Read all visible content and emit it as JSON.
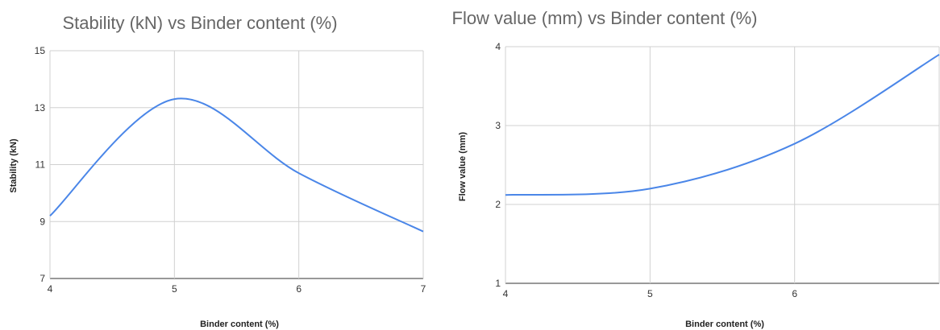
{
  "chart_data": [
    {
      "type": "line",
      "title": "Stability (kN) vs Binder content (%)",
      "xlabel": "Binder content (%)",
      "ylabel": "Stability (kN)",
      "xlim": [
        4,
        7
      ],
      "ylim": [
        7,
        15
      ],
      "xticks": [
        4,
        5,
        6,
        7
      ],
      "yticks": [
        7,
        9,
        11,
        13,
        15
      ],
      "grid": true,
      "smooth": true,
      "color": "#4a86e8",
      "series": [
        {
          "x": [
            4,
            5,
            6,
            7
          ],
          "y": [
            9.2,
            13.3,
            10.7,
            8.65
          ]
        }
      ]
    },
    {
      "type": "line",
      "title": "Flow value (mm) vs Binder content (%)",
      "xlabel": "Binder content (%)",
      "ylabel": "Flow value (mm)",
      "xlim": [
        4,
        7
      ],
      "ylim": [
        1,
        4
      ],
      "xticks": [
        4,
        5,
        6
      ],
      "yticks": [
        1,
        2,
        3,
        4
      ],
      "grid": true,
      "smooth": true,
      "color": "#4a86e8",
      "series": [
        {
          "x": [
            4,
            5,
            6,
            7
          ],
          "y": [
            2.12,
            2.2,
            2.77,
            3.9
          ]
        }
      ]
    }
  ]
}
